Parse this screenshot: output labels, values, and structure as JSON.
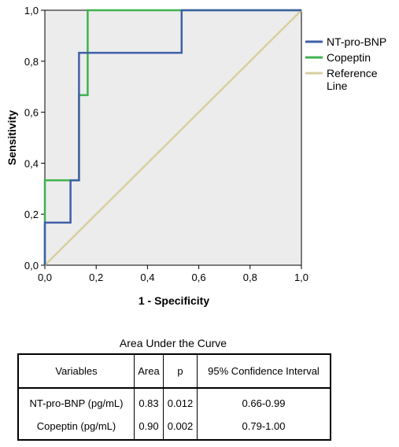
{
  "chart_data": {
    "type": "line",
    "title": "",
    "xlabel": "1 - Specificity",
    "ylabel": "Sensitivity",
    "xlim": [
      0,
      1
    ],
    "ylim": [
      0,
      1
    ],
    "x_ticks": [
      "0,0",
      "0,2",
      "0,4",
      "0,6",
      "0,8",
      "1,0"
    ],
    "y_ticks": [
      "0,0",
      "0,2",
      "0,4",
      "0,6",
      "0,8",
      "1,0"
    ],
    "grid": false,
    "legend_position": "right",
    "series": [
      {
        "name": "NT-pro-BNP",
        "color": "#3f5fa8",
        "x": [
          0,
          0,
          0.1,
          0.1,
          0.133,
          0.133,
          0.533,
          0.533,
          1
        ],
        "y": [
          0,
          0.167,
          0.167,
          0.333,
          0.333,
          0.833,
          0.833,
          1,
          1
        ]
      },
      {
        "name": "Copeptin",
        "color": "#3fb34f",
        "x": [
          0,
          0,
          0.133,
          0.133,
          0.167,
          0.167,
          1
        ],
        "y": [
          0,
          0.333,
          0.333,
          0.667,
          0.667,
          1,
          1
        ]
      },
      {
        "name": "Reference Line",
        "color": "#d8cfa0",
        "x": [
          0,
          1
        ],
        "y": [
          0,
          1
        ]
      }
    ]
  },
  "table": {
    "title": "Area Under the Curve",
    "headers": [
      "Variables",
      "Area",
      "p",
      "95% Confidence Interval"
    ],
    "rows": [
      [
        "NT-pro-BNP (pg/mL)",
        "0.83",
        "0.012",
        "0.66-0.99"
      ],
      [
        "Copeptin (pg/mL)",
        "0.90",
        "0.002",
        "0.79-1.00"
      ]
    ]
  }
}
